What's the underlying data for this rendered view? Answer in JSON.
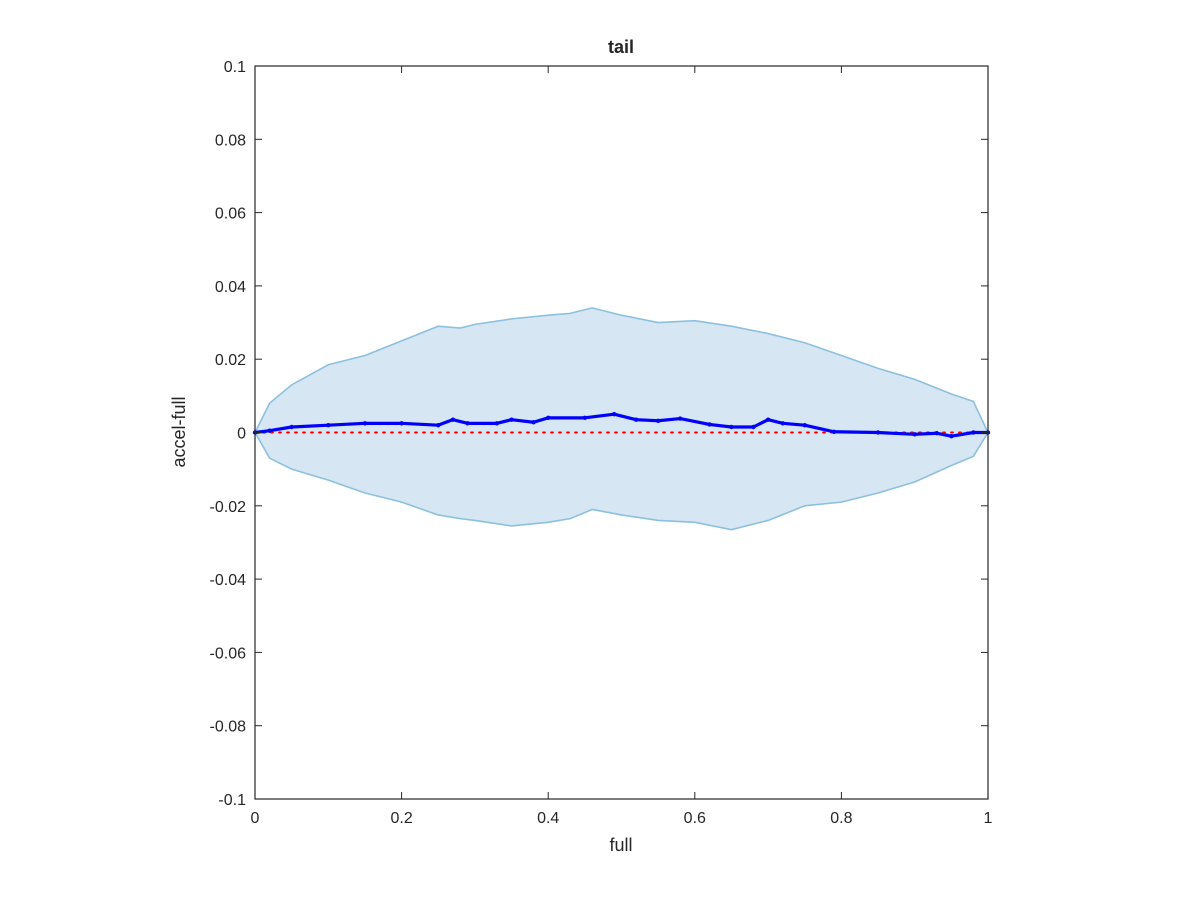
{
  "chart_data": {
    "type": "area",
    "title": "tail",
    "xlabel": "full",
    "ylabel": "accel-full",
    "xlim": [
      0,
      1
    ],
    "ylim": [
      -0.1,
      0.1
    ],
    "grid": false,
    "xticks": [
      0,
      0.2,
      0.4,
      0.6,
      0.8,
      1
    ],
    "xtick_labels": [
      "0",
      "0.2",
      "0.4",
      "0.6",
      "0.8",
      "1"
    ],
    "yticks": [
      0.1,
      0.08,
      0.06,
      0.04,
      0.02,
      0,
      -0.02,
      -0.04,
      -0.06,
      -0.08,
      -0.1
    ],
    "ytick_labels": [
      "0.1",
      "0.08",
      "0.06",
      "0.04",
      "0.02",
      "0",
      "-0.02",
      "-0.04",
      "-0.06",
      "-0.08",
      "-0.1"
    ],
    "colors": {
      "band_fill": "#d6e6f3",
      "band_edge": "#8cc0df",
      "mean_line": "#0000ff",
      "zero_line": "#ff0000",
      "axes": "#262626"
    },
    "series": [
      {
        "role": "band-upper",
        "x": [
          0,
          0.02,
          0.05,
          0.1,
          0.15,
          0.2,
          0.25,
          0.28,
          0.3,
          0.35,
          0.4,
          0.43,
          0.46,
          0.5,
          0.55,
          0.6,
          0.65,
          0.7,
          0.75,
          0.8,
          0.85,
          0.9,
          0.95,
          0.98,
          1
        ],
        "values": [
          0,
          0.008,
          0.013,
          0.0185,
          0.021,
          0.025,
          0.029,
          0.0285,
          0.0295,
          0.031,
          0.032,
          0.0325,
          0.034,
          0.032,
          0.03,
          0.0305,
          0.029,
          0.027,
          0.0245,
          0.021,
          0.0175,
          0.0145,
          0.0105,
          0.0085,
          0
        ]
      },
      {
        "role": "band-lower",
        "x": [
          0,
          0.02,
          0.05,
          0.1,
          0.15,
          0.2,
          0.25,
          0.28,
          0.3,
          0.35,
          0.4,
          0.43,
          0.46,
          0.5,
          0.55,
          0.6,
          0.65,
          0.7,
          0.75,
          0.8,
          0.85,
          0.9,
          0.95,
          0.98,
          1
        ],
        "values": [
          0,
          -0.007,
          -0.01,
          -0.013,
          -0.0165,
          -0.019,
          -0.0225,
          -0.0235,
          -0.024,
          -0.0255,
          -0.0245,
          -0.0235,
          -0.021,
          -0.0225,
          -0.024,
          -0.0245,
          -0.0265,
          -0.024,
          -0.02,
          -0.019,
          -0.0165,
          -0.0135,
          -0.009,
          -0.0065,
          0
        ]
      },
      {
        "role": "mean",
        "x": [
          0,
          0.02,
          0.05,
          0.1,
          0.15,
          0.2,
          0.25,
          0.27,
          0.29,
          0.33,
          0.35,
          0.38,
          0.4,
          0.45,
          0.49,
          0.52,
          0.55,
          0.58,
          0.62,
          0.65,
          0.68,
          0.7,
          0.72,
          0.75,
          0.79,
          0.85,
          0.9,
          0.93,
          0.95,
          0.98,
          1
        ],
        "values": [
          0,
          0.0005,
          0.0015,
          0.002,
          0.0025,
          0.0025,
          0.002,
          0.0035,
          0.0025,
          0.0025,
          0.0035,
          0.0028,
          0.004,
          0.004,
          0.005,
          0.0035,
          0.0032,
          0.0038,
          0.0022,
          0.0015,
          0.0015,
          0.0035,
          0.0025,
          0.002,
          0.0002,
          0,
          -0.0005,
          -0.0002,
          -0.001,
          0,
          0
        ]
      },
      {
        "role": "zero-reference",
        "x": [
          0,
          1
        ],
        "values": [
          0,
          0
        ]
      }
    ]
  }
}
